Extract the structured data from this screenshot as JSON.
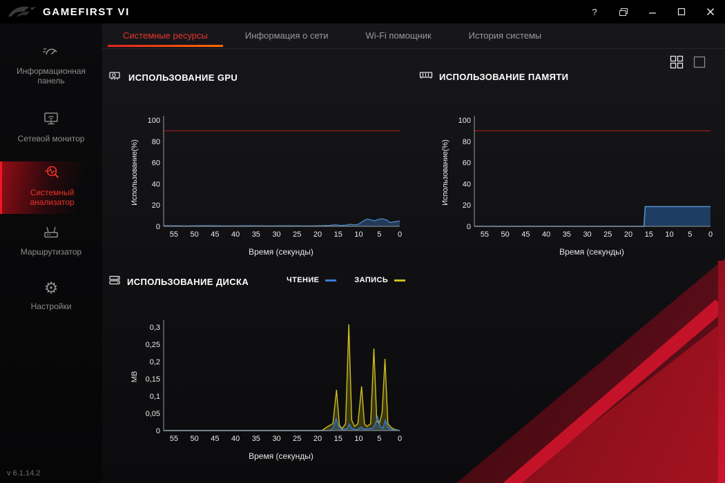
{
  "titlebar": {
    "title": "GAMEFIRST VI",
    "help": "?"
  },
  "sidebar": {
    "version": "v 6.1.14.2",
    "items": [
      {
        "label": "Информационная панель",
        "active": false
      },
      {
        "label": "Сетевой монитор",
        "active": false
      },
      {
        "label": "Системный анализатор",
        "active": true
      },
      {
        "label": "Маршрутизатор",
        "active": false
      },
      {
        "label": "Настройки",
        "active": false
      }
    ]
  },
  "tabs": [
    {
      "label": "Системные ресурсы",
      "active": true
    },
    {
      "label": "Информация о сети",
      "active": false
    },
    {
      "label": "Wi-Fi помощник",
      "active": false
    },
    {
      "label": "История системы",
      "active": false
    }
  ],
  "colors": {
    "accent_red": "#e8352b",
    "tab_underline_start": "#e0251f",
    "tab_underline_end": "#ff6a00",
    "threshold_red": "#8a1a1d",
    "gpu_line": "#4a80b8",
    "memory_fill": "#224876",
    "disk_read": "#3a7bd5",
    "disk_write": "#cdbd1d"
  },
  "charts": [
    {
      "title": "ИСПОЛЬЗОВАНИЕ GPU",
      "chart_data": {
        "type": "area",
        "xlabel": "Время (секунды)",
        "ylabel": "Использование(%)",
        "x_range": [
          57.5,
          0
        ],
        "y_range": [
          0,
          104
        ],
        "threshold": 90,
        "x_ticks": [
          {
            "v": 55,
            "label": "55"
          },
          {
            "v": 50,
            "label": "50"
          },
          {
            "v": 45,
            "label": "45"
          },
          {
            "v": 40,
            "label": "40"
          },
          {
            "v": 35,
            "label": "35"
          },
          {
            "v": 30,
            "label": "30"
          },
          {
            "v": 25,
            "label": "25"
          },
          {
            "v": 20,
            "label": "20"
          },
          {
            "v": 15,
            "label": "15"
          },
          {
            "v": 10,
            "label": "10"
          },
          {
            "v": 5,
            "label": "5"
          },
          {
            "v": 0,
            "label": "0"
          }
        ],
        "y_ticks": [
          {
            "v": 100,
            "label": "100"
          },
          {
            "v": 80,
            "label": "80"
          },
          {
            "v": 60,
            "label": "60"
          },
          {
            "v": 40,
            "label": "40"
          },
          {
            "v": 20,
            "label": "20"
          },
          {
            "v": 0,
            "label": "0"
          }
        ],
        "series": [
          {
            "name": "GPU",
            "color": "#4a80b8",
            "fill": "rgba(46,86,134,0.6)",
            "points": [
              [
                57.5,
                0.6
              ],
              [
                52,
                0.4
              ],
              [
                47,
                0.6
              ],
              [
                42,
                0.4
              ],
              [
                37,
                0.5
              ],
              [
                32,
                0.4
              ],
              [
                27,
                0.5
              ],
              [
                22,
                0.4
              ],
              [
                19,
                0.6
              ],
              [
                17,
                0.9
              ],
              [
                15.5,
                1.4
              ],
              [
                14.5,
                0.8
              ],
              [
                13,
                1.1
              ],
              [
                12,
                1.9
              ],
              [
                11,
                1.3
              ],
              [
                10,
                2.1
              ],
              [
                9,
                4.8
              ],
              [
                8,
                6.8
              ],
              [
                7,
                6.2
              ],
              [
                6.2,
                5.1
              ],
              [
                5.2,
                6.6
              ],
              [
                4.2,
                7.1
              ],
              [
                3.2,
                6.0
              ],
              [
                2.4,
                3.6
              ],
              [
                1.4,
                4.2
              ],
              [
                0,
                5.0
              ]
            ]
          }
        ]
      }
    },
    {
      "title": "ИСПОЛЬЗОВАНИЕ ПАМЯТИ",
      "chart_data": {
        "type": "area",
        "xlabel": "Время (секунды)",
        "ylabel": "Использование(%)",
        "x_range": [
          57.5,
          0
        ],
        "y_range": [
          0,
          104
        ],
        "threshold": 90,
        "x_ticks": [
          {
            "v": 55,
            "label": "55"
          },
          {
            "v": 50,
            "label": "50"
          },
          {
            "v": 45,
            "label": "45"
          },
          {
            "v": 40,
            "label": "40"
          },
          {
            "v": 35,
            "label": "35"
          },
          {
            "v": 30,
            "label": "30"
          },
          {
            "v": 25,
            "label": "25"
          },
          {
            "v": 20,
            "label": "20"
          },
          {
            "v": 15,
            "label": "15"
          },
          {
            "v": 10,
            "label": "10"
          },
          {
            "v": 5,
            "label": "5"
          },
          {
            "v": 0,
            "label": "0"
          }
        ],
        "y_ticks": [
          {
            "v": 100,
            "label": "100"
          },
          {
            "v": 80,
            "label": "80"
          },
          {
            "v": 60,
            "label": "60"
          },
          {
            "v": 40,
            "label": "40"
          },
          {
            "v": 20,
            "label": "20"
          },
          {
            "v": 0,
            "label": "0"
          }
        ],
        "series": [
          {
            "name": "Память",
            "color": "#5e9bd8",
            "fill": "rgba(34,72,118,0.8)",
            "points": [
              [
                57.5,
                0
              ],
              [
                16.2,
                0
              ],
              [
                15.9,
                18.6
              ],
              [
                0,
                18.6
              ]
            ]
          }
        ]
      }
    },
    {
      "title": "ИСПОЛЬЗОВАНИЕ ДИСКА",
      "legend": [
        {
          "label": "ЧТЕНИЕ",
          "color": "#3a7bd5"
        },
        {
          "label": "ЗАПИСЬ",
          "color": "#cdbd1d"
        }
      ],
      "chart_data": {
        "type": "line",
        "xlabel": "Время (секунды)",
        "ylabel": "MB",
        "x_range": [
          57.5,
          0
        ],
        "y_range": [
          0,
          0.32
        ],
        "x_ticks": [
          {
            "v": 55,
            "label": "55"
          },
          {
            "v": 50,
            "label": "50"
          },
          {
            "v": 45,
            "label": "45"
          },
          {
            "v": 40,
            "label": "40"
          },
          {
            "v": 35,
            "label": "35"
          },
          {
            "v": 30,
            "label": "30"
          },
          {
            "v": 25,
            "label": "25"
          },
          {
            "v": 20,
            "label": "20"
          },
          {
            "v": 15,
            "label": "15"
          },
          {
            "v": 10,
            "label": "10"
          },
          {
            "v": 5,
            "label": "5"
          },
          {
            "v": 0,
            "label": "0"
          }
        ],
        "y_ticks": [
          {
            "v": 0.3,
            "label": "0,3"
          },
          {
            "v": 0.25,
            "label": "0,25"
          },
          {
            "v": 0.2,
            "label": "0,2"
          },
          {
            "v": 0.15,
            "label": "0,15"
          },
          {
            "v": 0.1,
            "label": "0,1"
          },
          {
            "v": 0.05,
            "label": "0,05"
          },
          {
            "v": 0,
            "label": "0"
          }
        ],
        "series": [
          {
            "name": "ЗАПИСЬ",
            "color": "#cdbd1d",
            "fill": "rgba(205,189,29,0.25)",
            "points": [
              [
                57.5,
                0
              ],
              [
                19,
                0
              ],
              [
                17.5,
                0.012
              ],
              [
                16.3,
                0.02
              ],
              [
                15.4,
                0.118
              ],
              [
                14.7,
                0.015
              ],
              [
                14,
                0.006
              ],
              [
                13.2,
                0.02
              ],
              [
                12.4,
                0.308
              ],
              [
                11.7,
                0.03
              ],
              [
                11,
                0.012
              ],
              [
                10.2,
                0.02
              ],
              [
                9.3,
                0.128
              ],
              [
                8.6,
                0.02
              ],
              [
                8,
                0.012
              ],
              [
                7.1,
                0.02
              ],
              [
                6.3,
                0.238
              ],
              [
                5.6,
                0.03
              ],
              [
                5,
                0.02
              ],
              [
                4.3,
                0.052
              ],
              [
                3.6,
                0.208
              ],
              [
                2.9,
                0.02
              ],
              [
                2.2,
                0.01
              ],
              [
                1.4,
                0.004
              ],
              [
                0,
                0
              ]
            ]
          },
          {
            "name": "ЧТЕНИЕ",
            "color": "#3a7bd5",
            "fill": "rgba(58,123,213,0.3)",
            "points": [
              [
                57.5,
                0
              ],
              [
                17,
                0
              ],
              [
                16.2,
                0.008
              ],
              [
                15.5,
                0.034
              ],
              [
                14.8,
                0.01
              ],
              [
                14,
                0.002
              ],
              [
                12.8,
                0.006
              ],
              [
                12.3,
                0.018
              ],
              [
                11.7,
                0.006
              ],
              [
                10.5,
                0.002
              ],
              [
                9.4,
                0.01
              ],
              [
                8.8,
                0.004
              ],
              [
                6.6,
                0.006
              ],
              [
                6,
                0.018
              ],
              [
                5.4,
                0.04
              ],
              [
                4.8,
                0.012
              ],
              [
                4.1,
                0.006
              ],
              [
                3.5,
                0.03
              ],
              [
                2.9,
                0.01
              ],
              [
                2,
                0.003
              ],
              [
                0,
                0
              ]
            ]
          }
        ]
      }
    }
  ]
}
